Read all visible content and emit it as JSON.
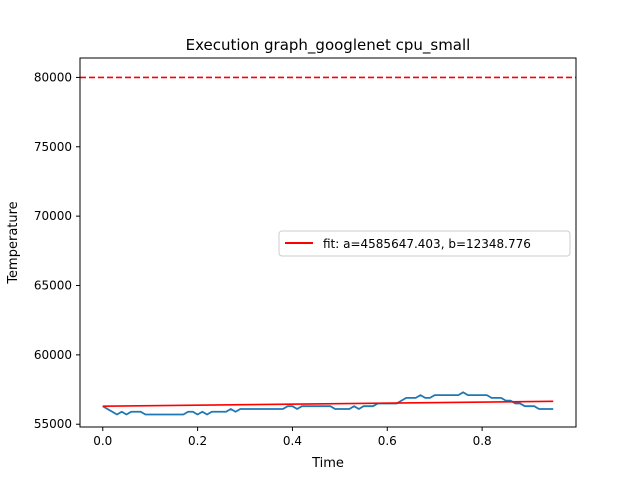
{
  "chart_data": {
    "type": "line",
    "title": "Execution graph_googlenet cpu_small",
    "xlabel": "Time",
    "ylabel": "Temperature",
    "xlim": [
      -0.048,
      0.998
    ],
    "ylim": [
      54800,
      81400
    ],
    "x_ticks": [
      0.0,
      0.2,
      0.4,
      0.6,
      0.8
    ],
    "x_tick_labels": [
      "0.0",
      "0.2",
      "0.4",
      "0.6",
      "0.8"
    ],
    "y_ticks": [
      55000,
      60000,
      65000,
      70000,
      75000,
      80000
    ],
    "y_tick_labels": [
      "55000",
      "60000",
      "65000",
      "70000",
      "75000",
      "80000"
    ],
    "grid": false,
    "legend_position": "center-right",
    "series": [
      {
        "color": "#1f77b4",
        "x": [
          0.0,
          0.01,
          0.02,
          0.03,
          0.04,
          0.05,
          0.06,
          0.07,
          0.08,
          0.09,
          0.1,
          0.11,
          0.12,
          0.13,
          0.14,
          0.15,
          0.16,
          0.17,
          0.18,
          0.19,
          0.2,
          0.21,
          0.22,
          0.23,
          0.24,
          0.25,
          0.26,
          0.27,
          0.28,
          0.29,
          0.3,
          0.31,
          0.32,
          0.33,
          0.34,
          0.35,
          0.36,
          0.37,
          0.38,
          0.39,
          0.4,
          0.41,
          0.42,
          0.43,
          0.44,
          0.45,
          0.46,
          0.47,
          0.48,
          0.49,
          0.5,
          0.51,
          0.52,
          0.53,
          0.54,
          0.55,
          0.56,
          0.57,
          0.58,
          0.59,
          0.6,
          0.61,
          0.62,
          0.63,
          0.64,
          0.65,
          0.66,
          0.67,
          0.68,
          0.69,
          0.7,
          0.71,
          0.72,
          0.73,
          0.74,
          0.75,
          0.76,
          0.77,
          0.78,
          0.79,
          0.8,
          0.81,
          0.82,
          0.83,
          0.84,
          0.85,
          0.86,
          0.87,
          0.88,
          0.89,
          0.9,
          0.91,
          0.92,
          0.93,
          0.94,
          0.95
        ],
        "y": [
          56300,
          56100,
          55900,
          55700,
          55900,
          55700,
          55900,
          55900,
          55900,
          55700,
          55700,
          55700,
          55700,
          55700,
          55700,
          55700,
          55700,
          55700,
          55900,
          55900,
          55700,
          55900,
          55700,
          55900,
          55900,
          55900,
          55900,
          56100,
          55900,
          56100,
          56100,
          56100,
          56100,
          56100,
          56100,
          56100,
          56100,
          56100,
          56100,
          56300,
          56300,
          56100,
          56300,
          56300,
          56300,
          56300,
          56300,
          56300,
          56300,
          56100,
          56100,
          56100,
          56100,
          56300,
          56100,
          56300,
          56300,
          56300,
          56500,
          56500,
          56500,
          56500,
          56500,
          56700,
          56900,
          56900,
          56900,
          57100,
          56900,
          56900,
          57100,
          57100,
          57100,
          57100,
          57100,
          57100,
          57300,
          57100,
          57100,
          57100,
          57100,
          57100,
          56900,
          56900,
          56900,
          56700,
          56700,
          56500,
          56500,
          56300,
          56300,
          56300,
          56100,
          56100,
          56100,
          56100
        ]
      },
      {
        "name": "fit: a=4585647.403, b=12348.776",
        "color": "#ff0000",
        "x": [
          0.0,
          0.95
        ],
        "y": [
          56300,
          56650
        ]
      }
    ],
    "hlines": [
      {
        "y": 80000,
        "color": "#ff0000",
        "style": "dashed"
      }
    ]
  }
}
